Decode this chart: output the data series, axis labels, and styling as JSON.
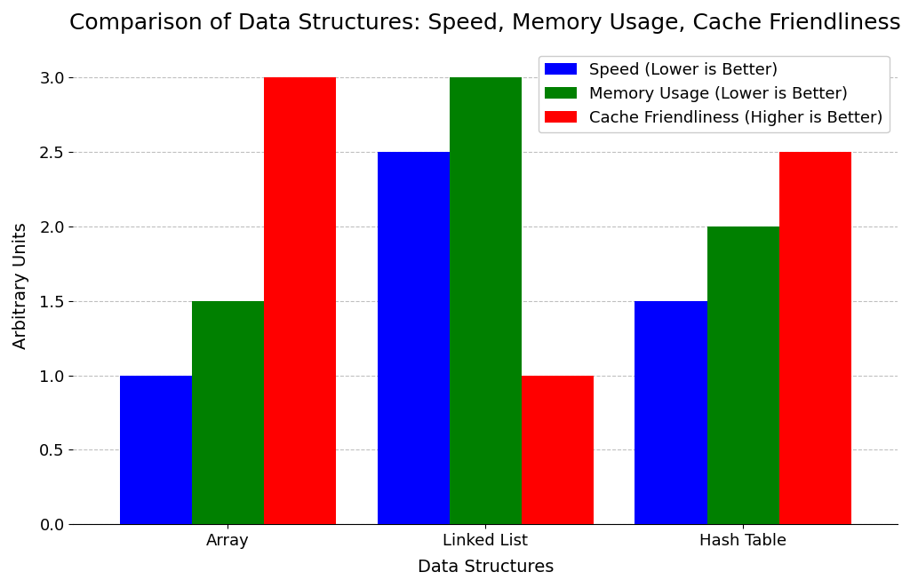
{
  "title": "Comparison of Data Structures: Speed, Memory Usage, Cache Friendliness",
  "xlabel": "Data Structures",
  "ylabel": "Arbitrary Units",
  "categories": [
    "Array",
    "Linked List",
    "Hash Table"
  ],
  "series": [
    {
      "label": "Speed (Lower is Better)",
      "color": "#0000ff",
      "values": [
        1.0,
        2.5,
        1.5
      ]
    },
    {
      "label": "Memory Usage (Lower is Better)",
      "color": "#008000",
      "values": [
        1.5,
        3.0,
        2.0
      ]
    },
    {
      "label": "Cache Friendliness (Higher is Better)",
      "color": "#ff0000",
      "values": [
        3.0,
        1.0,
        2.5
      ]
    }
  ],
  "ylim": [
    0,
    3.2
  ],
  "yticks": [
    0.0,
    0.5,
    1.0,
    1.5,
    2.0,
    2.5,
    3.0
  ],
  "grid": true,
  "background_color": "#ffffff",
  "bar_width": 0.28,
  "title_fontsize": 18,
  "axis_label_fontsize": 14,
  "tick_fontsize": 13,
  "legend_fontsize": 13,
  "legend_loc": "upper right"
}
